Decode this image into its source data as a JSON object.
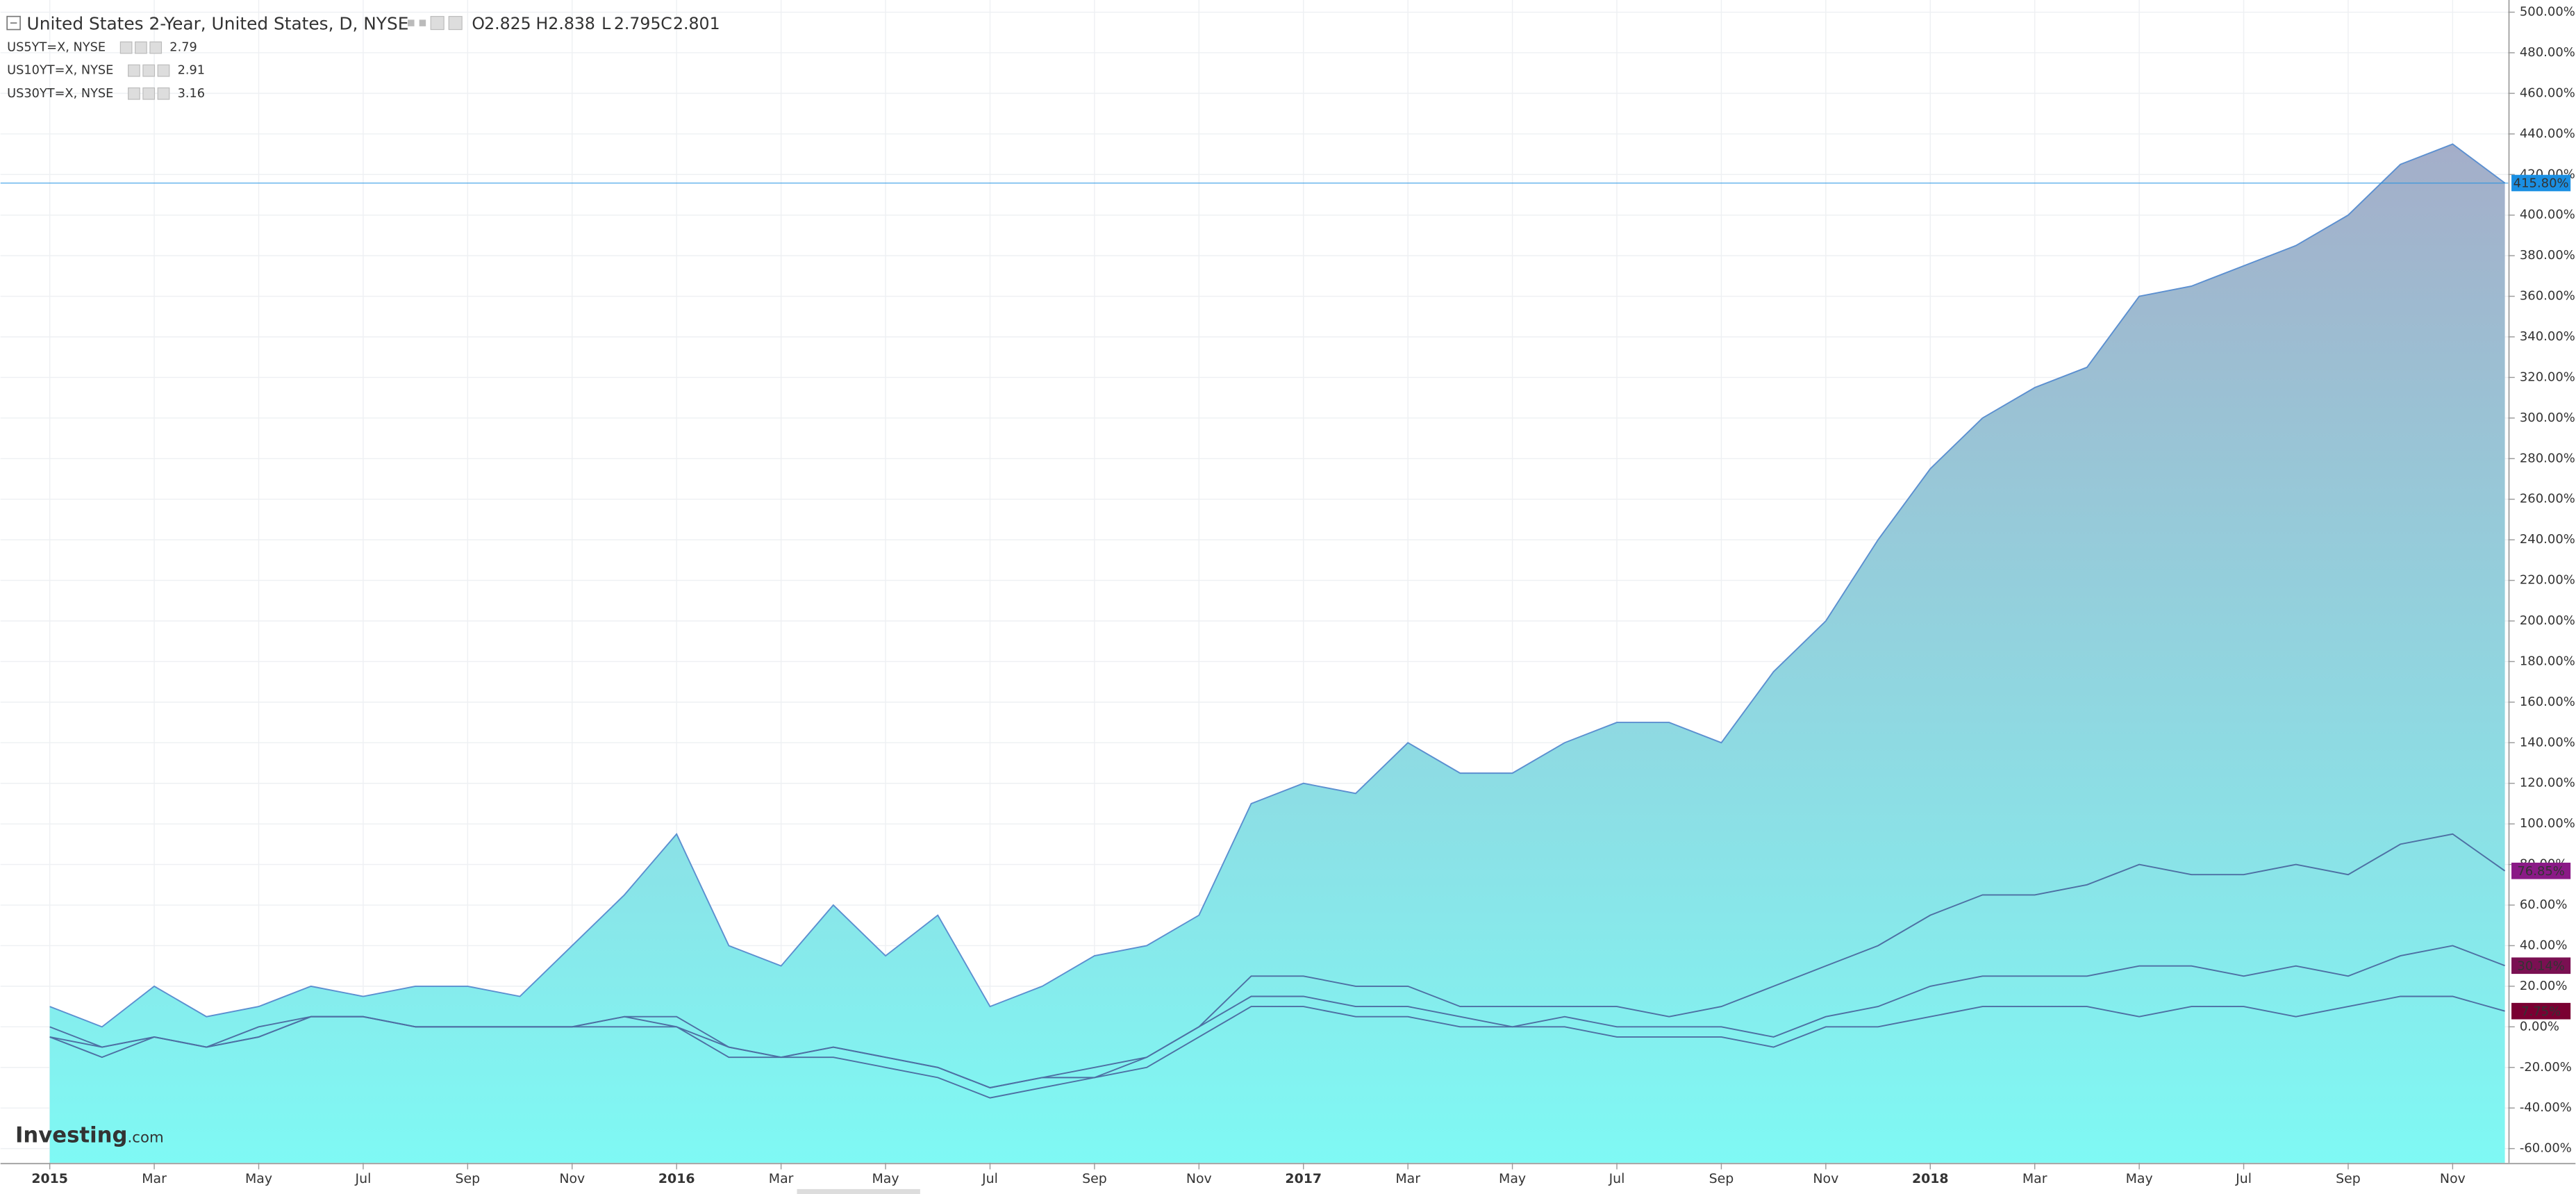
{
  "chart_data": {
    "type": "area-lines",
    "title": "United States 2-Year, United States, D, NYSE",
    "ohlc": [
      {
        "label": "O",
        "value": 2.825
      },
      {
        "label": "H",
        "value": 2.838
      },
      {
        "label": "L",
        "value": 2.795
      },
      {
        "label": "C",
        "value": 2.801
      }
    ],
    "logo": {
      "brand": "Investing",
      "suffix": ".com"
    },
    "categories": [
      "2015",
      null,
      "Mar",
      null,
      "May",
      null,
      "Jul",
      null,
      "Sep",
      null,
      "Nov",
      null,
      "2016",
      null,
      "Mar",
      null,
      "May",
      null,
      "Jul",
      null,
      "Sep",
      null,
      "Nov",
      null,
      "2017",
      null,
      "Mar",
      null,
      "May",
      null,
      "Jul",
      null,
      "Sep",
      null,
      "Nov",
      null,
      "2018",
      null,
      "Mar",
      null,
      "May",
      null,
      "Jul",
      null,
      "Sep",
      null,
      "Nov",
      null
    ],
    "series": [
      {
        "kind": "area",
        "color": "#5b8fd0",
        "fill_top": "#a4aec9",
        "fill_bottom": "#7ff9f4",
        "badge_color": "#1a8fe3",
        "values": [
          10,
          0,
          20,
          5,
          10,
          20,
          15,
          20,
          20,
          15,
          40,
          65,
          95,
          40,
          30,
          60,
          35,
          55,
          10,
          20,
          35,
          40,
          55,
          110,
          120,
          115,
          140,
          125,
          125,
          140,
          150,
          150,
          140,
          175,
          200,
          240,
          275,
          300,
          315,
          325,
          360,
          365,
          375,
          385,
          400,
          425,
          435,
          415.8
        ],
        "value_labels": [
          null,
          null,
          null,
          null,
          null,
          null,
          null,
          null,
          null,
          null,
          null,
          null,
          null,
          null,
          null,
          null,
          null,
          null,
          null,
          null,
          null,
          null,
          null,
          null,
          null,
          null,
          null,
          null,
          null,
          null,
          null,
          null,
          null,
          null,
          null,
          null,
          null,
          null,
          null,
          null,
          null,
          null,
          null,
          null,
          null,
          null,
          null,
          "415.80%"
        ]
      },
      {
        "name": "US5YT=X, NYSE",
        "last": 2.79,
        "kind": "line",
        "color": "#4d6fa3",
        "badge_color": "#8a1a86",
        "values": [
          0,
          -10,
          -5,
          -10,
          -5,
          5,
          5,
          0,
          0,
          0,
          0,
          5,
          5,
          -10,
          -15,
          -10,
          -15,
          -20,
          -30,
          -25,
          -20,
          -15,
          0,
          25,
          25,
          20,
          20,
          10,
          10,
          10,
          10,
          5,
          10,
          20,
          30,
          40,
          55,
          65,
          65,
          70,
          80,
          75,
          75,
          80,
          75,
          90,
          95,
          76.85
        ],
        "value_labels": [
          null,
          null,
          null,
          null,
          null,
          null,
          null,
          null,
          null,
          null,
          null,
          null,
          null,
          null,
          null,
          null,
          null,
          null,
          null,
          null,
          null,
          null,
          null,
          null,
          null,
          null,
          null,
          null,
          null,
          null,
          null,
          null,
          null,
          null,
          null,
          null,
          null,
          null,
          null,
          null,
          null,
          null,
          null,
          null,
          null,
          null,
          null,
          "76.85%"
        ]
      },
      {
        "name": "US10YT=X, NYSE",
        "last": 2.91,
        "kind": "line",
        "color": "#4d6fa3",
        "badge_color": "#7a1052",
        "values": [
          -5,
          -10,
          -5,
          -10,
          -5,
          5,
          5,
          0,
          0,
          0,
          0,
          5,
          0,
          -15,
          -15,
          -15,
          -20,
          -25,
          -35,
          -30,
          -25,
          -15,
          0,
          15,
          15,
          10,
          10,
          5,
          0,
          5,
          0,
          0,
          0,
          -5,
          5,
          10,
          20,
          25,
          25,
          25,
          30,
          30,
          25,
          30,
          25,
          35,
          40,
          30.14
        ],
        "value_labels": [
          null,
          null,
          null,
          null,
          null,
          null,
          null,
          null,
          null,
          null,
          null,
          null,
          null,
          null,
          null,
          null,
          null,
          null,
          null,
          null,
          null,
          null,
          null,
          null,
          null,
          null,
          null,
          null,
          null,
          null,
          null,
          null,
          null,
          null,
          null,
          null,
          null,
          null,
          null,
          null,
          null,
          null,
          null,
          null,
          null,
          null,
          null,
          "30.14%"
        ]
      },
      {
        "name": "US30YT=X, NYSE",
        "last": 3.16,
        "kind": "line",
        "color": "#4d6fa3",
        "badge_color": "#7a0032",
        "values": [
          -5,
          -15,
          -5,
          -10,
          0,
          5,
          5,
          0,
          0,
          0,
          0,
          0,
          0,
          -10,
          -15,
          -10,
          -15,
          -20,
          -30,
          -25,
          -25,
          -20,
          -5,
          10,
          10,
          5,
          5,
          0,
          0,
          0,
          -5,
          -5,
          -5,
          -10,
          0,
          0,
          5,
          10,
          10,
          10,
          5,
          10,
          10,
          5,
          10,
          15,
          15,
          7.75
        ],
        "value_labels": [
          null,
          null,
          null,
          null,
          null,
          null,
          null,
          null,
          null,
          null,
          null,
          null,
          null,
          null,
          null,
          null,
          null,
          null,
          null,
          null,
          null,
          null,
          null,
          null,
          null,
          null,
          null,
          null,
          null,
          null,
          null,
          null,
          null,
          null,
          null,
          null,
          null,
          null,
          null,
          null,
          null,
          null,
          null,
          null,
          null,
          null,
          null,
          "7.75%"
        ]
      }
    ],
    "ylim": [
      -67,
      506
    ],
    "yticks": [
      {
        "value": -60,
        "label": "-60.00%"
      },
      {
        "value": -40,
        "label": "-40.00%"
      },
      {
        "value": -20,
        "label": "-20.00%"
      },
      {
        "value": 0,
        "label": "0.00%"
      },
      {
        "value": 20,
        "label": "20.00%"
      },
      {
        "value": 40,
        "label": "40.00%"
      },
      {
        "value": 60,
        "label": "60.00%"
      },
      {
        "value": 80,
        "label": "80.00%"
      },
      {
        "value": 100,
        "label": "100.00%"
      },
      {
        "value": 120,
        "label": "120.00%"
      },
      {
        "value": 140,
        "label": "140.00%"
      },
      {
        "value": 160,
        "label": "160.00%"
      },
      {
        "value": 180,
        "label": "180.00%"
      },
      {
        "value": 200,
        "label": "200.00%"
      },
      {
        "value": 220,
        "label": "220.00%"
      },
      {
        "value": 240,
        "label": "240.00%"
      },
      {
        "value": 260,
        "label": "260.00%"
      },
      {
        "value": 280,
        "label": "280.00%"
      },
      {
        "value": 300,
        "label": "300.00%"
      },
      {
        "value": 320,
        "label": "320.00%"
      },
      {
        "value": 340,
        "label": "340.00%"
      },
      {
        "value": 360,
        "label": "360.00%"
      },
      {
        "value": 380,
        "label": "380.00%"
      },
      {
        "value": 400,
        "label": "400.00%"
      },
      {
        "value": 420,
        "label": "420.00%"
      },
      {
        "value": 440,
        "label": "440.00%"
      },
      {
        "value": 460,
        "label": "460.00%"
      },
      {
        "value": 480,
        "label": "480.00%"
      },
      {
        "value": 500,
        "label": "500.00%"
      }
    ],
    "grid": true,
    "header_value_color": "#1a8fe3",
    "legend_value_color": "#8a1a86"
  }
}
